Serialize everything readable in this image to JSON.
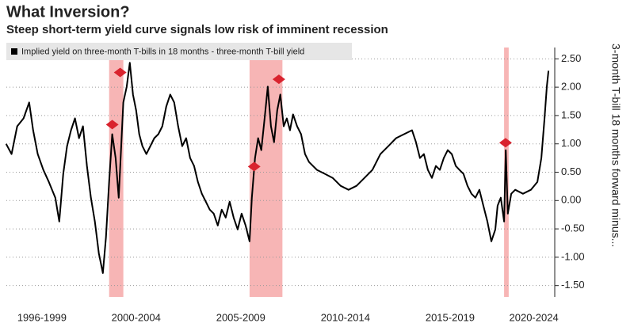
{
  "chart_data": {
    "type": "line",
    "title": "What Inversion?",
    "subtitle": "Steep short-term yield curve signals low risk of imminent recession",
    "y_label": "3-month T-bill 18 months forward minus...",
    "x": [
      1996.29,
      1996.55,
      1996.82,
      1997.12,
      1997.39,
      1997.58,
      1997.8,
      1998.07,
      1998.33,
      1998.64,
      1998.83,
      1999.02,
      1999.2,
      1999.39,
      1999.58,
      1999.77,
      1999.96,
      2000.15,
      2000.34,
      2000.53,
      2000.72,
      2000.91,
      2001.06,
      2001.21,
      2001.36,
      2001.52,
      2001.67,
      2001.78,
      2001.89,
      2002.05,
      2002.2,
      2002.35,
      2002.5,
      2002.65,
      2002.8,
      2002.99,
      2003.18,
      2003.37,
      2003.56,
      2003.75,
      2003.94,
      2004.13,
      2004.32,
      2004.51,
      2004.7,
      2004.89,
      2005.08,
      2005.27,
      2005.45,
      2005.64,
      2005.83,
      2006.02,
      2006.21,
      2006.4,
      2006.59,
      2006.78,
      2006.97,
      2007.16,
      2007.35,
      2007.54,
      2007.73,
      2007.92,
      2008.03,
      2008.18,
      2008.33,
      2008.48,
      2008.64,
      2008.79,
      2008.94,
      2009.09,
      2009.24,
      2009.39,
      2009.55,
      2009.7,
      2009.85,
      2010.0,
      2010.19,
      2010.38,
      2010.57,
      2010.76,
      2010.95,
      2011.14,
      2011.52,
      2011.89,
      2012.27,
      2012.65,
      2013.03,
      2013.41,
      2013.79,
      2014.17,
      2014.55,
      2014.92,
      2015.3,
      2015.68,
      2015.87,
      2016.06,
      2016.25,
      2016.44,
      2016.63,
      2016.82,
      2017.01,
      2017.2,
      2017.39,
      2017.58,
      2017.77,
      2017.95,
      2018.14,
      2018.33,
      2018.52,
      2018.71,
      2018.9,
      2019.09,
      2019.28,
      2019.47,
      2019.66,
      2019.77,
      2019.92,
      2020.08,
      2020.16,
      2020.26,
      2020.42,
      2020.61,
      2020.98,
      2021.36,
      2021.67,
      2021.86,
      2022.01,
      2022.12,
      2022.2
    ],
    "series": [
      {
        "name": "Implied yield on three-month T-bills in 18 months - three-month T-bill yield",
        "color": "#000000",
        "values": [
          1.0,
          0.82,
          1.31,
          1.45,
          1.73,
          1.24,
          0.82,
          0.54,
          0.33,
          0.05,
          -0.37,
          0.47,
          0.96,
          1.24,
          1.45,
          1.1,
          1.31,
          0.61,
          0.05,
          -0.37,
          -0.93,
          -1.28,
          -0.65,
          0.33,
          1.17,
          0.75,
          0.05,
          0.89,
          1.73,
          2.01,
          2.43,
          1.87,
          1.59,
          1.17,
          0.96,
          0.82,
          0.96,
          1.1,
          1.17,
          1.31,
          1.66,
          1.87,
          1.73,
          1.31,
          0.96,
          1.1,
          0.75,
          0.61,
          0.33,
          0.12,
          -0.02,
          -0.16,
          -0.23,
          -0.44,
          -0.16,
          -0.3,
          -0.02,
          -0.3,
          -0.51,
          -0.23,
          -0.44,
          -0.72,
          0.05,
          0.75,
          1.1,
          0.89,
          1.45,
          2.01,
          1.31,
          1.03,
          1.59,
          1.87,
          1.31,
          1.45,
          1.24,
          1.52,
          1.31,
          1.17,
          0.82,
          0.68,
          0.61,
          0.54,
          0.47,
          0.4,
          0.26,
          0.19,
          0.26,
          0.4,
          0.54,
          0.82,
          0.96,
          1.1,
          1.17,
          1.24,
          1.03,
          0.75,
          0.82,
          0.54,
          0.4,
          0.61,
          0.54,
          0.75,
          0.89,
          0.82,
          0.61,
          0.54,
          0.47,
          0.26,
          0.12,
          0.05,
          0.19,
          -0.09,
          -0.37,
          -0.72,
          -0.51,
          -0.09,
          0.05,
          -0.37,
          0.89,
          -0.23,
          0.12,
          0.19,
          0.12,
          0.19,
          0.33,
          0.75,
          1.45,
          2.01,
          2.29
        ]
      }
    ],
    "recessions": {
      "color": "#f5a3a3",
      "spans": [
        [
          2001.21,
          2001.89
        ],
        [
          2007.92,
          2009.49
        ],
        [
          2020.08,
          2020.3
        ]
      ]
    },
    "markers": {
      "color": "#d9232e",
      "x": [
        2001.74,
        2001.36,
        2008.14,
        2009.32,
        2020.15
      ],
      "y": [
        2.26,
        1.34,
        0.6,
        2.14,
        1.02
      ]
    },
    "xlim": [
      1996.3,
      2022.5
    ],
    "ylim": [
      -1.7,
      2.7
    ],
    "xticks": [
      {
        "value": 1998,
        "label": "1996-1999"
      },
      {
        "value": 2002.5,
        "label": "2000-2004"
      },
      {
        "value": 2007.5,
        "label": "2005-2009"
      },
      {
        "value": 2012.5,
        "label": "2010-2014"
      },
      {
        "value": 2017.5,
        "label": "2015-2019"
      },
      {
        "value": 2021.5,
        "label": "2020-2024"
      }
    ],
    "yticks": [
      {
        "value": -1.5,
        "label": "-1.50"
      },
      {
        "value": -1,
        "label": "-1.00"
      },
      {
        "value": -0.5,
        "label": "-0.50"
      },
      {
        "value": 0,
        "label": "0.00"
      },
      {
        "value": 0.5,
        "label": "0.50"
      },
      {
        "value": 1,
        "label": "1.00"
      },
      {
        "value": 1.5,
        "label": "1.50"
      },
      {
        "value": 2,
        "label": "2.00"
      },
      {
        "value": 2.5,
        "label": "2.50"
      }
    ],
    "grid": true
  }
}
